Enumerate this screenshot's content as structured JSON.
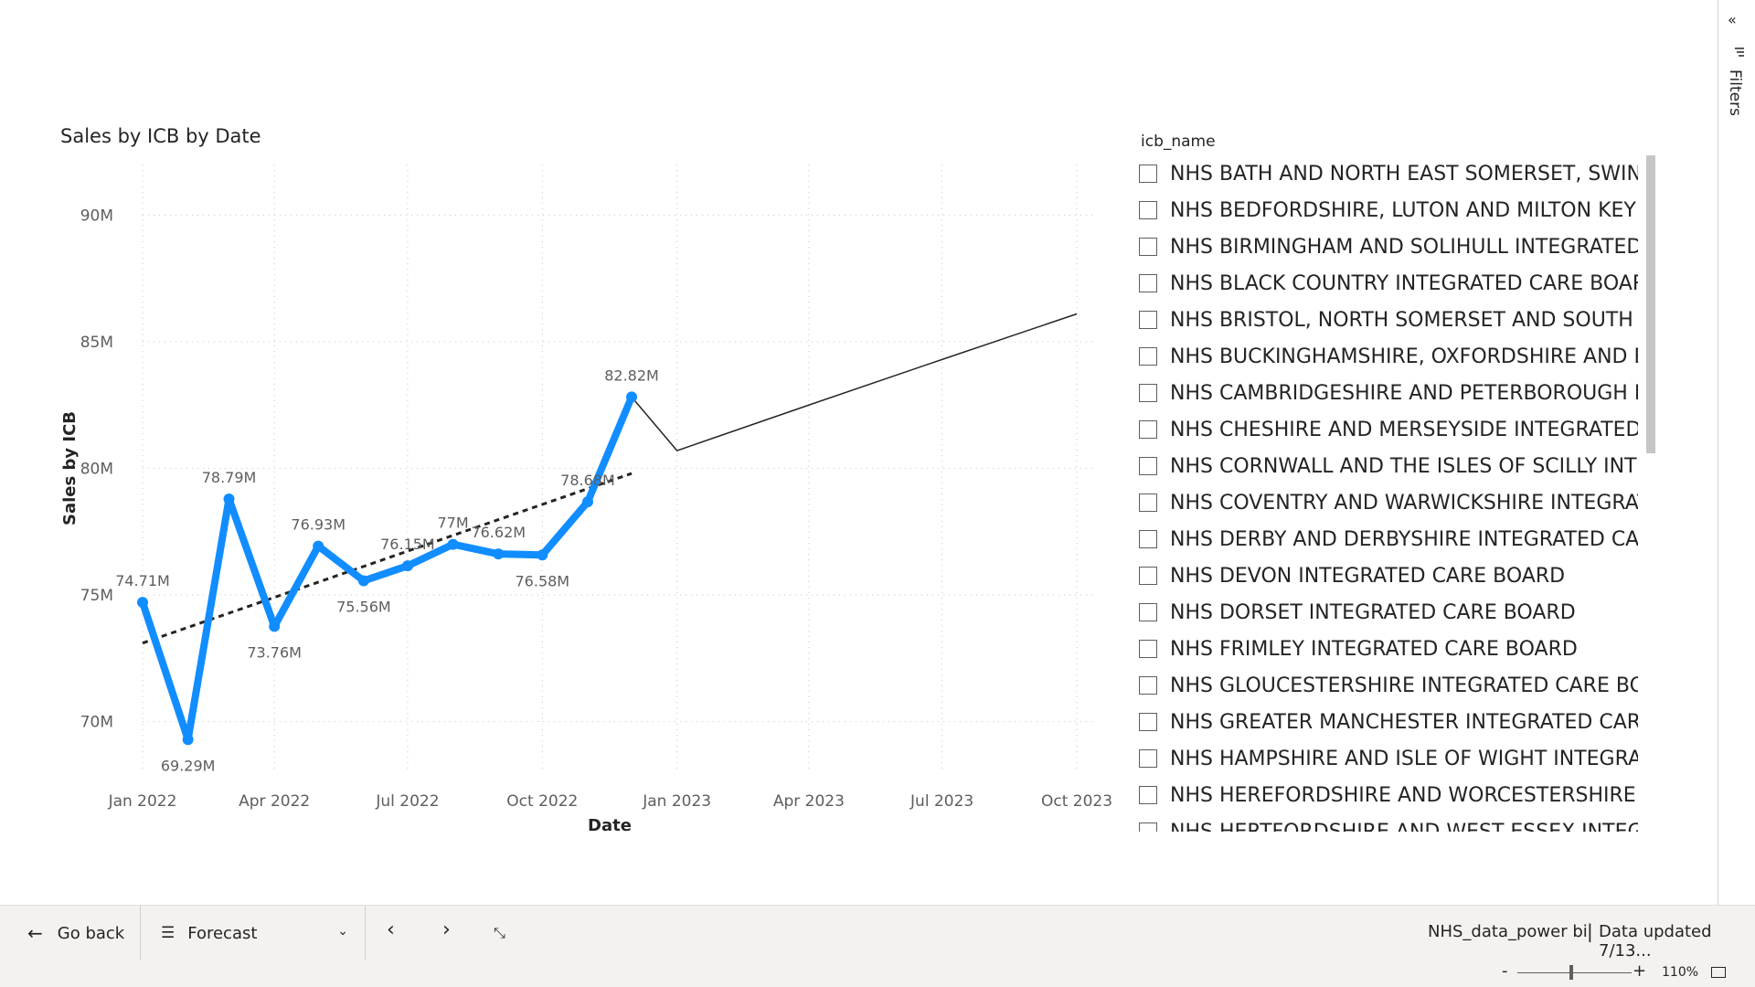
{
  "visual": {
    "title": "Sales by ICB by Date"
  },
  "chart_data": {
    "type": "line",
    "title": "Sales by ICB by Date",
    "xlabel": "Date",
    "ylabel": "Sales by ICB",
    "x_ticks": [
      "Jan 2022",
      "Apr 2022",
      "Jul 2022",
      "Oct 2022",
      "Jan 2023",
      "Apr 2023",
      "Jul 2023",
      "Oct 2023"
    ],
    "y_ticks": [
      "70M",
      "75M",
      "80M",
      "85M",
      "90M"
    ],
    "ylim": [
      68,
      92
    ],
    "grid": true,
    "series": [
      {
        "role": "actual",
        "color": "#118DFF",
        "points": [
          {
            "date": "2022-01-01",
            "value": 74.71,
            "label": "74.71M"
          },
          {
            "date": "2022-02-01",
            "value": 69.29,
            "label": "69.29M"
          },
          {
            "date": "2022-03-01",
            "value": 78.79,
            "label": "78.79M"
          },
          {
            "date": "2022-04-01",
            "value": 73.76,
            "label": "73.76M"
          },
          {
            "date": "2022-05-01",
            "value": 76.93,
            "label": "76.93M"
          },
          {
            "date": "2022-06-01",
            "value": 75.56,
            "label": "75.56M"
          },
          {
            "date": "2022-07-01",
            "value": 76.15,
            "label": "76.15M"
          },
          {
            "date": "2022-08-01",
            "value": 77.0,
            "label": "77M"
          },
          {
            "date": "2022-09-01",
            "value": 76.62,
            "label": "76.62M"
          },
          {
            "date": "2022-10-01",
            "value": 76.58,
            "label": "76.58M"
          },
          {
            "date": "2022-11-01",
            "value": 78.68,
            "label": "78.68M"
          },
          {
            "date": "2022-12-01",
            "value": 82.82,
            "label": "82.82M"
          }
        ]
      },
      {
        "role": "forecast",
        "color": "#252423",
        "points": [
          {
            "date": "2022-12-01",
            "value": 82.82
          },
          {
            "date": "2023-01-01",
            "value": 80.7
          },
          {
            "date": "2023-04-01",
            "value": 82.5
          },
          {
            "date": "2023-07-01",
            "value": 84.3
          },
          {
            "date": "2023-10-01",
            "value": 86.1
          }
        ]
      },
      {
        "role": "trend",
        "color": "#252423",
        "points": [
          {
            "date": "2022-01-01",
            "value": 73.1
          },
          {
            "date": "2022-12-01",
            "value": 79.8
          }
        ]
      }
    ]
  },
  "slicer": {
    "header": "icb_name",
    "items": [
      "NHS BATH AND NORTH EAST SOMERSET, SWINDO",
      "NHS BEDFORDSHIRE, LUTON AND MILTON KEYNE",
      "NHS BIRMINGHAM AND SOLIHULL INTEGRATED C",
      "NHS BLACK COUNTRY INTEGRATED CARE BOARD",
      "NHS BRISTOL, NORTH SOMERSET AND SOUTH GL",
      "NHS BUCKINGHAMSHIRE, OXFORDSHIRE AND BER",
      "NHS CAMBRIDGESHIRE AND PETERBOROUGH INTE",
      "NHS CHESHIRE AND MERSEYSIDE INTEGRATED C",
      "NHS CORNWALL AND THE ISLES OF SCILLY INT",
      "NHS COVENTRY AND WARWICKSHIRE INTEGRATED",
      "NHS DERBY AND DERBYSHIRE INTEGRATED CARE",
      "NHS DEVON INTEGRATED CARE BOARD",
      "NHS DORSET INTEGRATED CARE BOARD",
      "NHS FRIMLEY INTEGRATED CARE BOARD",
      "NHS GLOUCESTERSHIRE INTEGRATED CARE BOAR",
      "NHS GREATER MANCHESTER INTEGRATED CARE B",
      "NHS HAMPSHIRE AND ISLE OF WIGHT INTEGRAT",
      "NHS HEREFORDSHIRE AND WORCESTERSHIRE INT",
      "NHS HERTFORDSHIRE AND WEST ESSEX INTEGRA"
    ]
  },
  "filters_pane": {
    "label": "Filters",
    "collapse_icon": "double-chevron-left-icon",
    "filter_icon": "filter-icon"
  },
  "bottom_bar": {
    "go_back_label": "Go back",
    "page_label": "Forecast",
    "report_name": "NHS_data_power bi",
    "separator": "|",
    "data_updated": "Data updated 7/13..."
  },
  "status_bar": {
    "zoom_minus": "-",
    "zoom_plus": "+",
    "zoom_level": "110%",
    "zoom_fraction": 0.47
  }
}
